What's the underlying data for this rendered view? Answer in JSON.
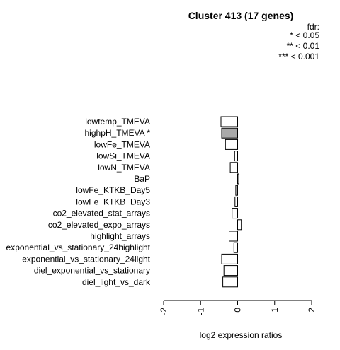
{
  "chart_data": {
    "type": "bar",
    "orientation": "horizontal",
    "title": "Cluster 413 (17 genes)",
    "xlabel": "log2 expression ratios",
    "xlim": [
      -2,
      2
    ],
    "xticks": [
      "-2",
      "-1",
      "0",
      "1",
      "2"
    ],
    "legend": {
      "title": "fdr:",
      "entries": [
        "* < 0.05",
        "** < 0.01",
        "*** < 0.001"
      ],
      "placement": "top-right"
    },
    "categories": [
      "lowtemp_TMEVA",
      "highpH_TMEVA *",
      "lowFe_TMEVA",
      "lowSi_TMEVA",
      "lowN_TMEVA",
      "BaP",
      "lowFe_KTKB_Day5",
      "lowFe_KTKB_Day3",
      "co2_elevated_stat_arrays",
      "co2_elevated_expo_arrays",
      "highlight_arrays",
      "exponential_vs_stationary_24highlight",
      "exponential_vs_stationary_24light",
      "diel_exponential_vs_stationary",
      "diel_light_vs_dark"
    ],
    "values": [
      -0.45,
      -0.43,
      -0.33,
      -0.08,
      -0.2,
      0.03,
      -0.05,
      -0.07,
      -0.15,
      0.1,
      -0.23,
      -0.1,
      -0.43,
      -0.37,
      -0.4
    ],
    "highlighted": [
      false,
      true,
      false,
      false,
      false,
      false,
      false,
      false,
      false,
      false,
      false,
      false,
      false,
      false,
      false
    ],
    "colors": {
      "bar": "#ffffff",
      "highlight": "#a9a9a9",
      "stroke": "#000000"
    }
  }
}
